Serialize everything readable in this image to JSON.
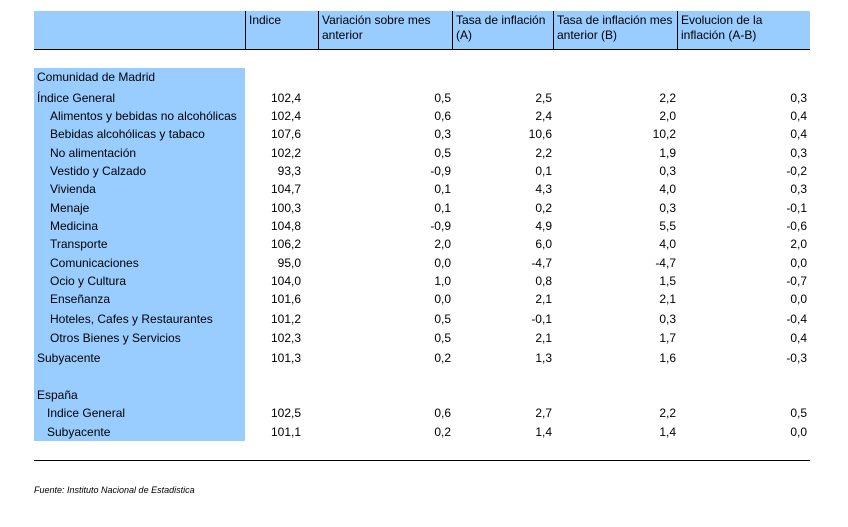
{
  "header": {
    "col0": "",
    "col1": "Indice",
    "col2": "Variación sobre mes anterior",
    "col3": "Tasa de inflación (A)",
    "col4": "Tasa de inflación mes anterior (B)",
    "col5": "Evolucion de la inflación (A-B)"
  },
  "madrid": {
    "title": "Comunidad de Madrid",
    "rows": [
      {
        "label": "Índice General",
        "v": [
          "102,4",
          "0,5",
          "2,5",
          "2,2",
          "0,3"
        ]
      },
      {
        "label": "Alimentos y bebidas no alcohólicas",
        "v": [
          "102,4",
          "0,6",
          "2,4",
          "2,0",
          "0,4"
        ]
      },
      {
        "label": "Bebidas alcohólicas y tabaco",
        "v": [
          "107,6",
          "0,3",
          "10,6",
          "10,2",
          "0,4"
        ]
      },
      {
        "label": "No alimentación",
        "v": [
          "102,2",
          "0,5",
          "2,2",
          "1,9",
          "0,3"
        ]
      },
      {
        "label": "Vestido y Calzado",
        "v": [
          "93,3",
          "-0,9",
          "0,1",
          "0,3",
          "-0,2"
        ]
      },
      {
        "label": "Vivienda",
        "v": [
          "104,7",
          "0,1",
          "4,3",
          "4,0",
          "0,3"
        ]
      },
      {
        "label": "Menaje",
        "v": [
          "100,3",
          "0,1",
          "0,2",
          "0,3",
          "-0,1"
        ]
      },
      {
        "label": "Medicina",
        "v": [
          "104,8",
          "-0,9",
          "4,9",
          "5,5",
          "-0,6"
        ]
      },
      {
        "label": "Transporte",
        "v": [
          "106,2",
          "2,0",
          "6,0",
          "4,0",
          "2,0"
        ]
      },
      {
        "label": "Comunicaciones",
        "v": [
          "95,0",
          "0,0",
          "-4,7",
          "-4,7",
          "0,0"
        ]
      },
      {
        "label": "Ocio y Cultura",
        "v": [
          "104,0",
          "1,0",
          "0,8",
          "1,5",
          "-0,7"
        ]
      },
      {
        "label": "Enseñanza",
        "v": [
          "101,6",
          "0,0",
          "2,1",
          "2,1",
          "0,0"
        ]
      },
      {
        "label": "Hoteles, Cafes y Restaurantes",
        "v": [
          "101,2",
          "0,5",
          "-0,1",
          "0,3",
          "-0,4"
        ]
      },
      {
        "label": "Otros Bienes y Servicios",
        "v": [
          "102,3",
          "0,5",
          "2,1",
          "1,7",
          "0,4"
        ]
      },
      {
        "label": "Subyacente",
        "v": [
          "101,3",
          "0,2",
          "1,3",
          "1,6",
          "-0,3"
        ]
      }
    ]
  },
  "espana": {
    "title": "España",
    "rows": [
      {
        "label": "Indice General",
        "v": [
          "102,5",
          "0,6",
          "2,7",
          "2,2",
          "0,5"
        ]
      },
      {
        "label": "Subyacente",
        "v": [
          "101,1",
          "0,2",
          "1,4",
          "1,4",
          "0,0"
        ]
      }
    ]
  },
  "source": "Fuente: Instituto Nacional de Estadistica"
}
